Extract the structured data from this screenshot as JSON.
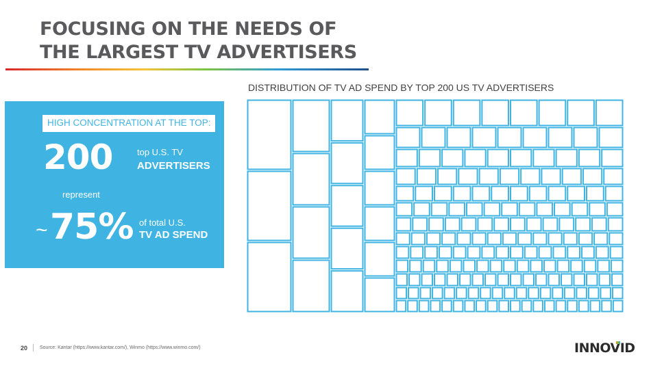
{
  "slide": {
    "title_line1": "FOCUSING ON THE NEEDS OF",
    "title_line2": "THE LARGEST TV ADVERTISERS"
  },
  "callout": {
    "heading": "HIGH CONCENTRATION AT THE TOP:",
    "count": "200",
    "count_line1": "top U.S. TV",
    "count_line2": "ADVERTISERS",
    "connector": "represent",
    "tilde": "~",
    "percent": "75%",
    "percent_line1": "of total U.S.",
    "percent_line2": "TV AD SPEND",
    "background_color": "#3fb4e3"
  },
  "chart_data": {
    "type": "treemap",
    "title": "DISTRIBUTION OF TV AD SPEND BY TOP 200 US TV ADVERTISERS",
    "item_count": 200,
    "stroke_color": "#3fb4e3"
  },
  "footer": {
    "page_number": "20",
    "source": "Source: Kantar (https://www.kantar.com/), Winmo (https://www.winmo.com/)",
    "logo_text": "INNOVID"
  }
}
